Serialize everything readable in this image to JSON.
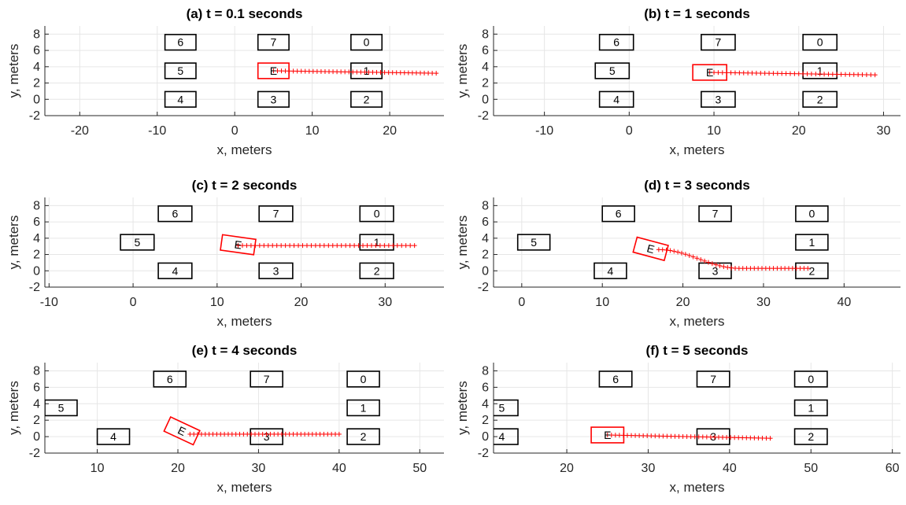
{
  "colors": {
    "ego": "#ff0000",
    "car": "#000000",
    "grid": "#e6e6e6",
    "axis": "#262626"
  },
  "chart_data": [
    {
      "type": "scatter",
      "title": "(a) t = 0.1 seconds",
      "xlabel": "x, meters",
      "ylabel": "y, meters",
      "xlim": [
        -24.5,
        27
      ],
      "ylim": [
        -2,
        9
      ],
      "xticks": [
        -20,
        -10,
        0,
        10,
        20
      ],
      "yticks": [
        -2,
        0,
        2,
        4,
        6,
        8
      ],
      "grid": true,
      "cars": [
        {
          "label": "6",
          "x": -7,
          "y": 7,
          "angle": 0
        },
        {
          "label": "7",
          "x": 5,
          "y": 7,
          "angle": 0
        },
        {
          "label": "0",
          "x": 17,
          "y": 7,
          "angle": 0
        },
        {
          "label": "5",
          "x": -7,
          "y": 3.5,
          "angle": 0
        },
        {
          "label": "1",
          "x": 17,
          "y": 3.5,
          "angle": 0
        },
        {
          "label": "4",
          "x": -7,
          "y": 0,
          "angle": 0
        },
        {
          "label": "3",
          "x": 5,
          "y": 0,
          "angle": 0
        },
        {
          "label": "2",
          "x": 17,
          "y": 0,
          "angle": 0
        }
      ],
      "ego": {
        "label": "E",
        "x": 5,
        "y": 3.5,
        "angle": 0
      },
      "trajectory": {
        "x0": 5,
        "x1": 26,
        "y0": 3.5,
        "y1": 3.2,
        "n": 42
      }
    },
    {
      "type": "scatter",
      "title": "(b) t = 1 seconds",
      "xlabel": "x, meters",
      "ylabel": "y, meters",
      "xlim": [
        -16,
        32
      ],
      "ylim": [
        -2,
        9
      ],
      "xticks": [
        -10,
        0,
        10,
        20,
        30
      ],
      "yticks": [
        -2,
        0,
        2,
        4,
        6,
        8
      ],
      "grid": true,
      "cars": [
        {
          "label": "6",
          "x": -1.5,
          "y": 7,
          "angle": 0
        },
        {
          "label": "7",
          "x": 10.5,
          "y": 7,
          "angle": 0
        },
        {
          "label": "0",
          "x": 22.5,
          "y": 7,
          "angle": 0
        },
        {
          "label": "5",
          "x": -2,
          "y": 3.5,
          "angle": 0
        },
        {
          "label": "1",
          "x": 22.5,
          "y": 3.5,
          "angle": 0
        },
        {
          "label": "4",
          "x": -1.5,
          "y": 0,
          "angle": 0
        },
        {
          "label": "3",
          "x": 10.5,
          "y": 0,
          "angle": 0
        },
        {
          "label": "2",
          "x": 22.5,
          "y": 0,
          "angle": 0
        }
      ],
      "ego": {
        "label": "E",
        "x": 9.5,
        "y": 3.3,
        "angle": 0
      },
      "trajectory": {
        "x0": 9.5,
        "x1": 29,
        "y0": 3.3,
        "y1": 3.0,
        "n": 40
      }
    },
    {
      "type": "scatter",
      "title": "(c) t = 2 seconds",
      "xlabel": "x, meters",
      "ylabel": "y, meters",
      "xlim": [
        -10.5,
        37
      ],
      "ylim": [
        -2,
        9
      ],
      "xticks": [
        -10,
        0,
        10,
        20,
        30
      ],
      "yticks": [
        -2,
        0,
        2,
        4,
        6,
        8
      ],
      "grid": true,
      "cars": [
        {
          "label": "6",
          "x": 5,
          "y": 7,
          "angle": 0
        },
        {
          "label": "7",
          "x": 17,
          "y": 7,
          "angle": 0
        },
        {
          "label": "0",
          "x": 29,
          "y": 7,
          "angle": 0
        },
        {
          "label": "5",
          "x": 0.5,
          "y": 3.5,
          "angle": 0
        },
        {
          "label": "1",
          "x": 29,
          "y": 3.5,
          "angle": 0
        },
        {
          "label": "4",
          "x": 5,
          "y": 0,
          "angle": 0
        },
        {
          "label": "3",
          "x": 17,
          "y": 0,
          "angle": 0
        },
        {
          "label": "2",
          "x": 29,
          "y": 0,
          "angle": 0
        }
      ],
      "ego": {
        "label": "E",
        "x": 12.5,
        "y": 3.2,
        "angle": -8
      },
      "trajectory": {
        "x0": 12.5,
        "x1": 33.5,
        "y0": 3.1,
        "y1": 3.1,
        "n": 42
      }
    },
    {
      "type": "scatter",
      "title": "(d) t = 3 seconds",
      "xlabel": "x, meters",
      "ylabel": "y, meters",
      "xlim": [
        -3.5,
        47
      ],
      "ylim": [
        -2,
        9
      ],
      "xticks": [
        0,
        10,
        20,
        30,
        40
      ],
      "yticks": [
        -2,
        0,
        2,
        4,
        6,
        8
      ],
      "grid": true,
      "cars": [
        {
          "label": "6",
          "x": 12,
          "y": 7,
          "angle": 0
        },
        {
          "label": "7",
          "x": 24,
          "y": 7,
          "angle": 0
        },
        {
          "label": "0",
          "x": 36,
          "y": 7,
          "angle": 0
        },
        {
          "label": "5",
          "x": 1.5,
          "y": 3.5,
          "angle": 0
        },
        {
          "label": "1",
          "x": 36,
          "y": 3.5,
          "angle": 0
        },
        {
          "label": "4",
          "x": 11,
          "y": 0,
          "angle": 0
        },
        {
          "label": "3",
          "x": 24,
          "y": 0,
          "angle": 0
        },
        {
          "label": "2",
          "x": 36,
          "y": 0,
          "angle": 0
        }
      ],
      "ego": {
        "label": "E",
        "x": 16,
        "y": 2.7,
        "angle": -15
      },
      "trajectory": {
        "x0": 17,
        "x1": 35.5,
        "y0": 2.6,
        "y1": 0.3,
        "n": 40,
        "curve": true
      }
    },
    {
      "type": "scatter",
      "title": "(e) t = 4 seconds",
      "xlabel": "x, meters",
      "ylabel": "y, meters",
      "xlim": [
        3.5,
        53
      ],
      "ylim": [
        -2,
        9
      ],
      "xticks": [
        10,
        20,
        30,
        40,
        50
      ],
      "yticks": [
        -2,
        0,
        2,
        4,
        6,
        8
      ],
      "grid": true,
      "cars": [
        {
          "label": "6",
          "x": 19,
          "y": 7,
          "angle": 0
        },
        {
          "label": "7",
          "x": 31,
          "y": 7,
          "angle": 0
        },
        {
          "label": "0",
          "x": 43,
          "y": 7,
          "angle": 0
        },
        {
          "label": "5",
          "x": 5.5,
          "y": 3.5,
          "angle": 0
        },
        {
          "label": "1",
          "x": 43,
          "y": 3.5,
          "angle": 0
        },
        {
          "label": "4",
          "x": 12,
          "y": 0,
          "angle": 0
        },
        {
          "label": "3",
          "x": 31,
          "y": 0,
          "angle": 0
        },
        {
          "label": "2",
          "x": 43,
          "y": 0,
          "angle": 0
        }
      ],
      "ego": {
        "label": "E",
        "x": 20.5,
        "y": 0.7,
        "angle": -25
      },
      "trajectory": {
        "x0": 21.5,
        "x1": 40,
        "y0": 0.3,
        "y1": 0.3,
        "n": 40
      }
    },
    {
      "type": "scatter",
      "title": "(f) t = 5 seconds",
      "xlabel": "x, meters",
      "ylabel": "y, meters",
      "xlim": [
        11,
        61
      ],
      "ylim": [
        -2,
        9
      ],
      "xticks": [
        20,
        30,
        40,
        50,
        60
      ],
      "yticks": [
        -2,
        0,
        2,
        4,
        6,
        8
      ],
      "grid": true,
      "cars": [
        {
          "label": "6",
          "x": 26,
          "y": 7,
          "angle": 0
        },
        {
          "label": "7",
          "x": 38,
          "y": 7,
          "angle": 0
        },
        {
          "label": "0",
          "x": 50,
          "y": 7,
          "angle": 0
        },
        {
          "label": "5",
          "x": 12,
          "y": 3.5,
          "angle": 0
        },
        {
          "label": "1",
          "x": 50,
          "y": 3.5,
          "angle": 0
        },
        {
          "label": "4",
          "x": 12,
          "y": 0,
          "angle": 0
        },
        {
          "label": "3",
          "x": 38,
          "y": 0,
          "angle": 0
        },
        {
          "label": "2",
          "x": 50,
          "y": 0,
          "angle": 0
        }
      ],
      "ego": {
        "label": "E",
        "x": 25,
        "y": 0.2,
        "angle": 0
      },
      "trajectory": {
        "x0": 25,
        "x1": 45,
        "y0": 0.2,
        "y1": -0.2,
        "n": 42
      }
    }
  ]
}
